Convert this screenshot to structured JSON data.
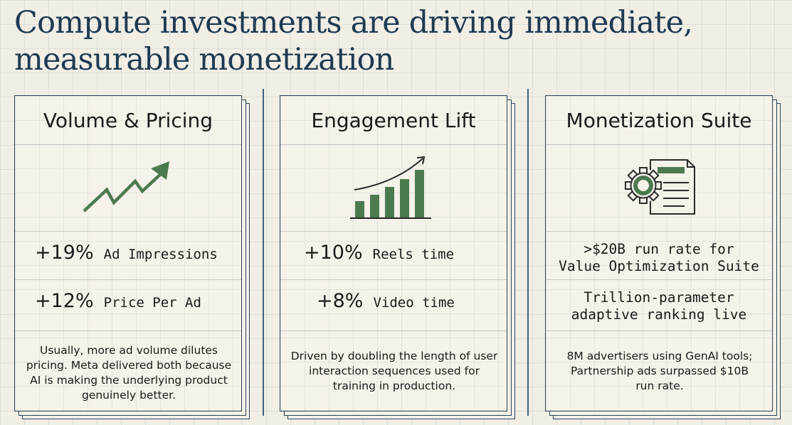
{
  "title": {
    "line1": "Compute investments are driving immediate,",
    "line2": "measurable monetization"
  },
  "colors": {
    "title": "#1d3a52",
    "accent_green": "#4c7a4f",
    "card_border": "#2b4458",
    "background": "#f1eee5"
  },
  "cards": [
    {
      "title": "Volume & Pricing",
      "icon": "trending-up-arrow-icon",
      "metrics": [
        {
          "value": "+19%",
          "label": "Ad Impressions"
        },
        {
          "value": "+12%",
          "label": "Price Per Ad"
        }
      ],
      "note": "Usually, more ad volume dilutes pricing. Meta delivered both because AI is making the underlying product genuinely better."
    },
    {
      "title": "Engagement Lift",
      "icon": "growth-bar-chart-icon",
      "metrics": [
        {
          "value": "+10%",
          "label": "Reels time"
        },
        {
          "value": "+8%",
          "label": "Video time"
        }
      ],
      "note": "Driven by doubling the length of user interaction sequences used for training in production."
    },
    {
      "title": "Monetization Suite",
      "icon": "gear-document-icon",
      "statements": [
        {
          "line1": ">$20B run rate for",
          "line2": "Value Optimization Suite"
        },
        {
          "line1": "Trillion-parameter",
          "line2": "adaptive ranking live"
        }
      ],
      "note": "8M advertisers using GenAI tools; Partnership ads surpassed $10B run rate."
    }
  ]
}
